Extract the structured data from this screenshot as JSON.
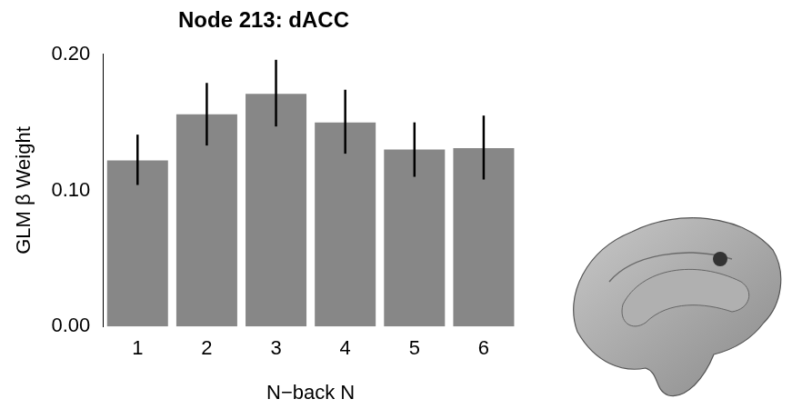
{
  "chart_data": {
    "type": "bar",
    "title": "Node 213: dACC",
    "x_label": "N−back N",
    "y_label": "GLM β Weight",
    "categories": [
      "1",
      "2",
      "3",
      "4",
      "5",
      "6"
    ],
    "values": [
      0.122,
      0.156,
      0.171,
      0.15,
      0.13,
      0.131
    ],
    "error_low": [
      0.104,
      0.133,
      0.147,
      0.127,
      0.11,
      0.108
    ],
    "error_high": [
      0.141,
      0.179,
      0.196,
      0.174,
      0.15,
      0.155
    ],
    "color": "#878787",
    "ylim": [
      0,
      0.2
    ],
    "yticks": [
      {
        "value": 0,
        "label": "0.00"
      },
      {
        "value": 0.1,
        "label": "0.10"
      },
      {
        "value": 0.2,
        "label": "0.20"
      }
    ],
    "grid": false
  }
}
